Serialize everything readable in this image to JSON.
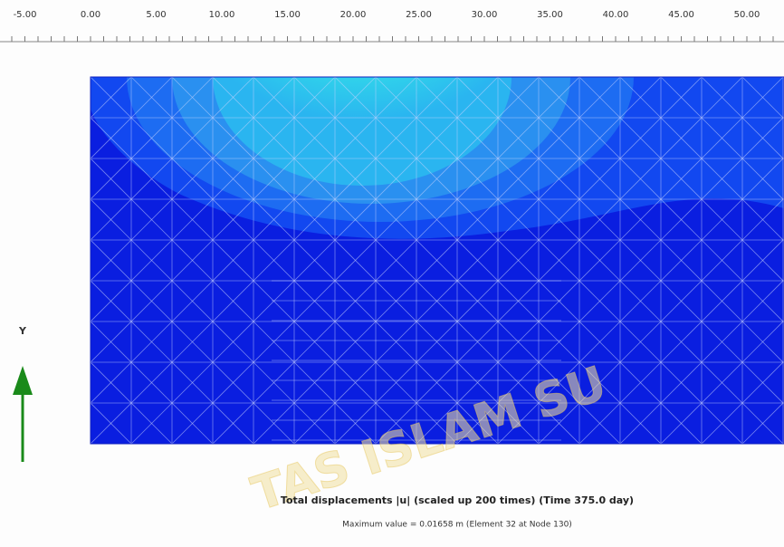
{
  "ruler": {
    "labels": [
      "-5.00",
      "0.00",
      "5.00",
      "10.00",
      "15.00",
      "20.00",
      "25.00",
      "30.00",
      "35.00",
      "40.00",
      "45.00",
      "50.00"
    ]
  },
  "axis_label": "Y",
  "caption": {
    "title": "Total displacements |u| (scaled up 200 times) (Time 375.0 day)",
    "subtitle": "Maximum value = 0.01658 m (Element 32 at Node 130)"
  },
  "watermark": "TAS ISLAM SU"
}
